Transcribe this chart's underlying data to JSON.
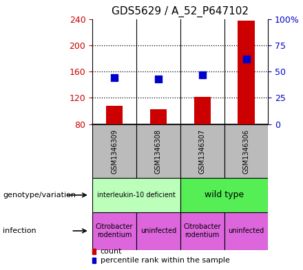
{
  "title": "GDS5629 / A_52_P647102",
  "samples": [
    "GSM1346309",
    "GSM1346308",
    "GSM1346307",
    "GSM1346306"
  ],
  "counts": [
    108,
    103,
    122,
    237
  ],
  "percentile_ranks": [
    44,
    43,
    47,
    62
  ],
  "ylim_left": [
    80,
    240
  ],
  "ylim_right": [
    0,
    100
  ],
  "yticks_left": [
    80,
    120,
    160,
    200,
    240
  ],
  "yticks_right": [
    0,
    25,
    50,
    75,
    100
  ],
  "yticklabels_right": [
    "0",
    "25",
    "50",
    "75",
    "100%"
  ],
  "bar_color": "#cc0000",
  "dot_color": "#0000cc",
  "bar_bottom": 80,
  "genotype_groups": [
    {
      "label": "interleukin-10 deficient",
      "color": "#bbffbb",
      "cols": [
        0,
        1
      ]
    },
    {
      "label": "wild type",
      "color": "#55ee55",
      "cols": [
        2,
        3
      ]
    }
  ],
  "infection_groups": [
    {
      "label": "Citrobacter\nrodentium",
      "color": "#dd66dd",
      "col": 0
    },
    {
      "label": "uninfected",
      "color": "#dd66dd",
      "col": 1
    },
    {
      "label": "Citrobacter\nrodentium",
      "color": "#dd66dd",
      "col": 2
    },
    {
      "label": "uninfected",
      "color": "#dd66dd",
      "col": 3
    }
  ],
  "sample_bg_color": "#bbbbbb",
  "legend_items": [
    {
      "color": "#cc0000",
      "label": "count"
    },
    {
      "color": "#0000cc",
      "label": "percentile rank within the sample"
    }
  ],
  "left_label_color": "#cc0000",
  "right_label_color": "#0000cc",
  "label_genotype": "genotype/variation",
  "label_infection": "infection"
}
